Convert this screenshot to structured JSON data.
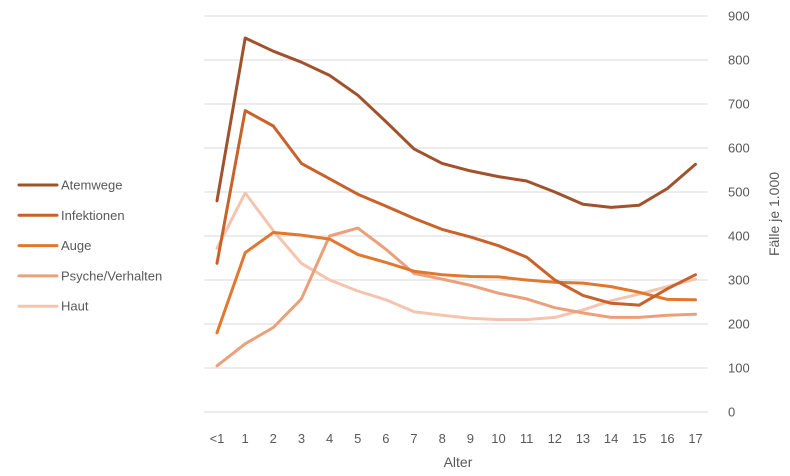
{
  "chart_data": {
    "type": "line",
    "xlabel": "Alter",
    "ylabel": "Fälle je 1.000",
    "categories": [
      "<1",
      "1",
      "2",
      "3",
      "4",
      "5",
      "6",
      "7",
      "8",
      "9",
      "10",
      "11",
      "12",
      "13",
      "14",
      "15",
      "16",
      "17"
    ],
    "ylim": [
      0,
      900
    ],
    "yticks": [
      0,
      100,
      200,
      300,
      400,
      500,
      600,
      700,
      800,
      900
    ],
    "grid": true,
    "y_axis_side": "right",
    "legend_position": "left",
    "series": [
      {
        "name": "Atemwege",
        "color": "#A0522D",
        "values": [
          480,
          850,
          820,
          795,
          765,
          720,
          660,
          598,
          565,
          548,
          535,
          525,
          500,
          472,
          465,
          470,
          508,
          563
        ]
      },
      {
        "name": "Infektionen",
        "color": "#C8612A",
        "values": [
          338,
          685,
          650,
          565,
          530,
          495,
          468,
          440,
          415,
          398,
          378,
          352,
          300,
          265,
          247,
          243,
          280,
          312
        ]
      },
      {
        "name": "Auge",
        "color": "#E0782F",
        "values": [
          180,
          362,
          408,
          402,
          393,
          358,
          340,
          320,
          312,
          308,
          307,
          300,
          295,
          293,
          285,
          272,
          256,
          255
        ]
      },
      {
        "name": "Psyche/Verhalten",
        "color": "#EBA07A",
        "values": [
          105,
          155,
          192,
          257,
          400,
          418,
          370,
          315,
          302,
          288,
          270,
          257,
          237,
          225,
          215,
          215,
          220,
          222
        ]
      },
      {
        "name": "Haut",
        "color": "#F4C4AE",
        "values": [
          372,
          498,
          412,
          338,
          300,
          275,
          255,
          228,
          220,
          213,
          210,
          210,
          215,
          232,
          253,
          268,
          285,
          302
        ]
      }
    ]
  }
}
